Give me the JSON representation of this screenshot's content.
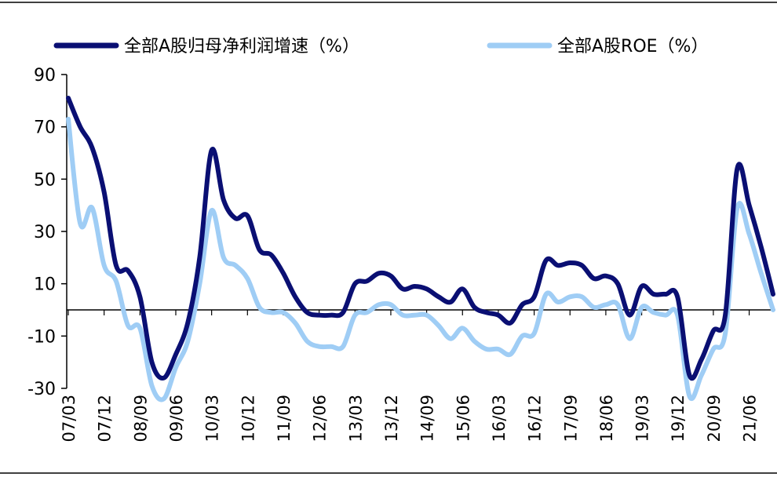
{
  "chart_data": {
    "type": "line",
    "x": [
      "07/03",
      "07/06",
      "07/09",
      "07/12",
      "08/03",
      "08/06",
      "08/09",
      "08/12",
      "09/03",
      "09/06",
      "09/09",
      "09/12",
      "10/03",
      "10/06",
      "10/09",
      "10/12",
      "11/03",
      "11/06",
      "11/09",
      "11/12",
      "12/03",
      "12/06",
      "12/09",
      "12/12",
      "13/03",
      "13/06",
      "13/09",
      "13/12",
      "14/03",
      "14/06",
      "14/09",
      "14/12",
      "15/03",
      "15/06",
      "15/09",
      "15/12",
      "16/03",
      "16/06",
      "16/09",
      "16/12",
      "17/03",
      "17/06",
      "17/09",
      "17/12",
      "18/03",
      "18/06",
      "18/09",
      "18/12",
      "19/03",
      "19/06",
      "19/09",
      "19/12",
      "20/03",
      "20/06",
      "20/09",
      "20/12",
      "21/03",
      "21/06",
      "21/09",
      "21/12"
    ],
    "x_tick_labels": [
      "07/03",
      "07/12",
      "08/09",
      "09/06",
      "10/03",
      "10/12",
      "11/09",
      "12/06",
      "13/03",
      "13/12",
      "14/09",
      "15/06",
      "16/03",
      "16/12",
      "17/09",
      "18/06",
      "19/03",
      "19/12",
      "20/09",
      "21/06"
    ],
    "series": [
      {
        "name": "全部A股归母净利润增速（%）",
        "color": "#0a0f73",
        "values": [
          81,
          70,
          62,
          45,
          17,
          15,
          5,
          -20,
          -26,
          -17,
          -5,
          20,
          61,
          42,
          35,
          36,
          23,
          21,
          14,
          5,
          -1,
          -2,
          -2,
          -1,
          10,
          11,
          14,
          13,
          8,
          9,
          8,
          5,
          3,
          8,
          1,
          -1,
          -2,
          -5,
          2,
          5,
          19,
          17,
          18,
          17,
          12,
          13,
          10,
          -2,
          9,
          6,
          6,
          5,
          -25,
          -19,
          -8,
          -2,
          54,
          40,
          24,
          6
        ],
        "line_width": 6
      },
      {
        "name": "全部A股ROE（%）",
        "color": "#9fcdf5",
        "values": [
          73,
          33,
          39,
          17,
          11,
          -6,
          -7,
          -29,
          -34,
          -22,
          -12,
          10,
          38,
          20,
          17,
          12,
          1,
          -1,
          -1,
          -5,
          -12,
          -14,
          -14,
          -14,
          -2,
          -1,
          2,
          2,
          -2,
          -2,
          -2,
          -6,
          -11,
          -7,
          -12,
          -15,
          -15,
          -17,
          -10,
          -9,
          6,
          3,
          5,
          5,
          1,
          2,
          2,
          -11,
          1,
          -1,
          -2,
          -2,
          -33,
          -25,
          -15,
          -9,
          39,
          29,
          14,
          0
        ],
        "line_width": 6
      }
    ],
    "ylim": [
      -30,
      90
    ],
    "y_ticks": [
      "90",
      "70",
      "50",
      "30",
      "10",
      "-10",
      "-30"
    ],
    "y_tick_values": [
      90,
      70,
      50,
      30,
      10,
      -10,
      -30
    ],
    "zero_line": true,
    "grid": false,
    "legend_position": "top"
  }
}
